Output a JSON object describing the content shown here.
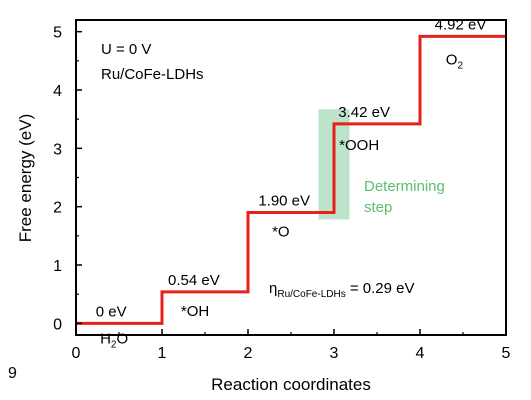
{
  "chart_data": {
    "type": "line",
    "xlabel": "Reaction coordinates",
    "ylabel": "Free energy (eV)",
    "xlim": [
      0,
      5
    ],
    "ylim": [
      -0.2,
      5.2
    ],
    "xticks": [
      "0",
      "1",
      "2",
      "3",
      "4",
      "5"
    ],
    "yticks": [
      "0",
      "1",
      "2",
      "3",
      "4",
      "5"
    ],
    "grid": false,
    "annotations": {
      "condition": "U = 0 V",
      "catalyst": "Ru/CoFe-LDHs",
      "determining_line1": "Determining",
      "determining_line2": "step",
      "overpotential_eta": "η",
      "overpotential_sub": "Ru/CoFe-LDHs",
      "overpotential_value": " = 0.29 eV",
      "stray_char": "9"
    },
    "series": [
      {
        "color": "#e8201c",
        "steps": [
          {
            "x0": 0,
            "x1": 1,
            "y": 0,
            "energy_label": "0 eV",
            "species": "H2O",
            "species_main": "H",
            "species_sub": "2",
            "species_tail": "O"
          },
          {
            "x0": 1,
            "x1": 2,
            "y": 0.54,
            "energy_label": "0.54 eV",
            "species": "*OH"
          },
          {
            "x0": 2,
            "x1": 3,
            "y": 1.9,
            "energy_label": "1.90 eV",
            "species": "*O"
          },
          {
            "x0": 3,
            "x1": 4,
            "y": 3.42,
            "energy_label": "3.42 eV",
            "species": "*OOH"
          },
          {
            "x0": 4,
            "x1": 5,
            "y": 4.92,
            "energy_label": "4.92 eV",
            "species": "O2",
            "species_main": "O",
            "species_sub": "2",
            "species_tail": ""
          }
        ]
      }
    ],
    "highlight": {
      "x0": 2.82,
      "x1": 3.18,
      "y0": 1.78,
      "y1": 3.67,
      "color": "#6cc48a"
    }
  }
}
